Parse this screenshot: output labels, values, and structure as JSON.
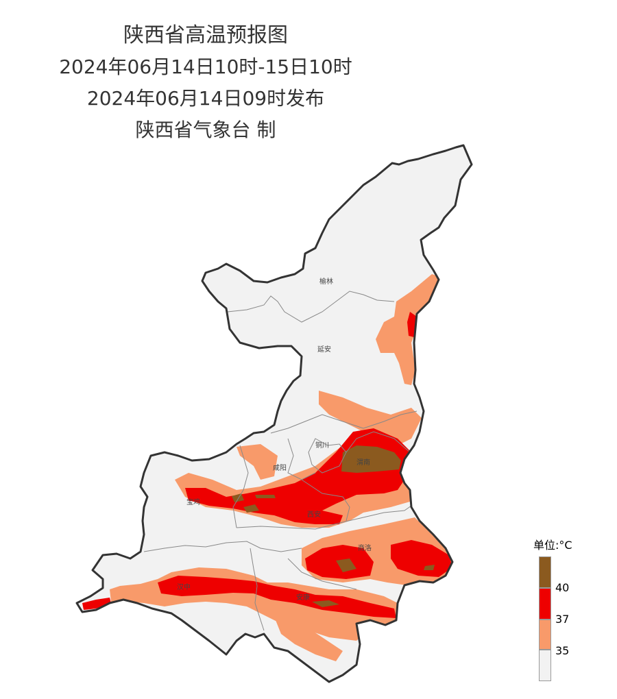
{
  "header": {
    "title": "陕西省高温预报图",
    "period": "2024年06月14日10时-15日10时",
    "issued": "2024年06月14日09时发布",
    "producer": "陕西省气象台 制"
  },
  "cities": [
    "榆林",
    "延安",
    "铜川",
    "渭南",
    "咸阳",
    "宝鸡",
    "西安",
    "商洛",
    "汉中",
    "安康"
  ],
  "legend": {
    "unit_label": "单位:°C",
    "thresholds": [
      "40",
      "37",
      "35"
    ],
    "colors": {
      "above_40": "#8B5A1F",
      "37_40": "#EE0000",
      "35_37": "#F89A6A",
      "below_35": "#F2F2F2"
    }
  }
}
